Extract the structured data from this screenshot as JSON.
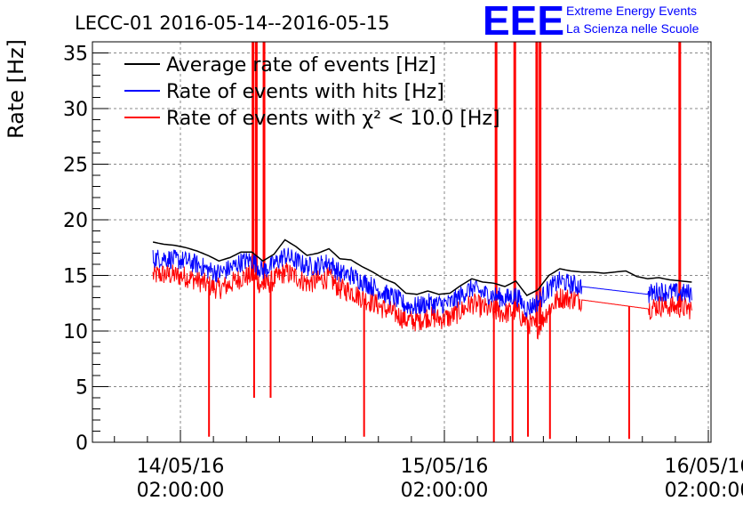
{
  "chart_data": {
    "type": "line",
    "title": "LECC-01 2016-05-14--2016-05-15",
    "ylabel": "Rate [Hz]",
    "xlabel": "",
    "ylim": [
      0,
      36
    ],
    "y_ticks": [
      0,
      5,
      10,
      15,
      20,
      25,
      30,
      35
    ],
    "x_ticks": [
      {
        "date": "14/05/16",
        "time": "02:00:00"
      },
      {
        "date": "15/05/16",
        "time": "02:00:00"
      },
      {
        "date": "16/05/16",
        "time": "02:00:00"
      }
    ],
    "grid": true,
    "legend_position": "top-left",
    "series": [
      {
        "name": "Average rate of events [Hz]",
        "color": "#000000",
        "hours": [
          -2.5,
          -1.5,
          -0.5,
          0.5,
          1.5,
          2.5,
          3.5,
          4.5,
          5.5,
          6.5,
          7.5,
          8.5,
          9.5,
          10.5,
          11.5,
          12.5,
          13.5,
          14.5,
          15.5,
          16.5,
          17.5,
          18.5,
          19.5,
          20.5,
          21.5,
          22.5,
          23.5,
          24.5,
          25.5,
          26.5,
          27.5,
          28.5,
          29.5,
          30.5,
          31.5,
          32.5,
          33.5,
          34.5,
          35.5,
          36.5,
          37.5,
          38.5,
          39.5,
          40.5,
          41.5,
          42.5,
          43.5,
          44.5,
          45.5,
          46.5
        ],
        "values": [
          18.0,
          17.8,
          17.7,
          17.5,
          17.2,
          16.8,
          16.3,
          16.6,
          17.1,
          17.1,
          16.3,
          16.9,
          18.2,
          17.6,
          16.8,
          17.0,
          17.4,
          16.5,
          16.4,
          15.8,
          15.3,
          14.7,
          14.3,
          13.4,
          13.3,
          13.6,
          13.3,
          13.4,
          14.1,
          14.7,
          14.4,
          14.3,
          14.0,
          14.5,
          13.2,
          13.7,
          15.0,
          15.6,
          15.4,
          15.3,
          15.3,
          15.2,
          15.3,
          15.4,
          14.9,
          14.7,
          14.8,
          14.6,
          14.5,
          14.4
        ],
        "gap_hours": [
          36.5,
          42.5
        ]
      },
      {
        "name": "Rate of events with hits [Hz]",
        "color": "#0000ff",
        "hours": [
          -2.5,
          -1.5,
          -0.5,
          0.5,
          1.5,
          2.5,
          3.5,
          4.5,
          5.5,
          6.5,
          7.5,
          8.5,
          9.5,
          10.5,
          11.5,
          12.5,
          13.5,
          14.5,
          15.5,
          16.5,
          17.5,
          18.5,
          19.5,
          20.5,
          21.5,
          22.5,
          23.5,
          24.5,
          25.5,
          26.5,
          27.5,
          28.5,
          29.5,
          30.5,
          31.5,
          32.5,
          33.5,
          34.5,
          35.5,
          36.5,
          42.5,
          43.5,
          44.5,
          45.5,
          46.5
        ],
        "values": [
          16.5,
          16.6,
          16.4,
          16.3,
          16.0,
          15.5,
          15.2,
          15.6,
          16.2,
          16.4,
          15.4,
          16.0,
          16.8,
          16.3,
          15.8,
          15.9,
          16.2,
          15.2,
          15.0,
          14.5,
          14.0,
          13.4,
          13.0,
          12.3,
          12.2,
          12.5,
          12.4,
          12.5,
          13.2,
          13.9,
          13.4,
          13.2,
          12.9,
          13.2,
          12.0,
          12.6,
          13.8,
          14.5,
          14.2,
          14.0,
          13.3,
          13.6,
          13.5,
          13.4,
          13.4
        ]
      },
      {
        "name": "Rate of events with χ² < 10.0 [Hz]",
        "color": "#ff0000",
        "hours": [
          -2.5,
          -1.5,
          -0.5,
          0.5,
          1.5,
          2.5,
          3.5,
          4.5,
          5.5,
          6.5,
          7.5,
          8.5,
          9.5,
          10.5,
          11.5,
          12.5,
          13.5,
          14.5,
          15.5,
          16.5,
          17.5,
          18.5,
          19.5,
          20.5,
          21.5,
          22.5,
          23.5,
          24.5,
          25.5,
          26.5,
          27.5,
          28.5,
          29.5,
          30.5,
          31.5,
          32.5,
          33.5,
          34.5,
          35.5,
          36.5,
          42.5,
          43.5,
          44.5,
          45.5,
          46.5
        ],
        "values": [
          15.0,
          15.1,
          15.0,
          14.9,
          14.6,
          14.1,
          13.8,
          14.2,
          14.8,
          15.0,
          14.0,
          14.6,
          15.3,
          14.9,
          14.3,
          14.5,
          14.8,
          13.8,
          13.6,
          13.0,
          12.6,
          12.0,
          11.6,
          11.0,
          10.9,
          11.3,
          11.1,
          11.2,
          11.8,
          12.5,
          12.1,
          11.8,
          11.6,
          11.8,
          10.8,
          10.3,
          12.0,
          13.0,
          12.9,
          12.8,
          12.0,
          12.3,
          12.2,
          12.1,
          12.0
        ],
        "spikes_up_hours": [
          6.6,
          7.6,
          28.7,
          30.4,
          32.4,
          45.4,
          6.9,
          32.7
        ],
        "spikes_down": [
          {
            "hour": 2.6,
            "value": 0.5
          },
          {
            "hour": 6.7,
            "value": 4.0
          },
          {
            "hour": 8.2,
            "value": 4.0
          },
          {
            "hour": 16.7,
            "value": 0.5
          },
          {
            "hour": 28.5,
            "value": 0.0
          },
          {
            "hour": 30.2,
            "value": 0.0
          },
          {
            "hour": 31.6,
            "value": 0.5
          },
          {
            "hour": 33.6,
            "value": 0.3
          },
          {
            "hour": 40.8,
            "value": 0.3
          }
        ]
      }
    ]
  },
  "logo": {
    "mark": "EEE",
    "line1": "Extreme Energy Events",
    "line2": "La Scienza nelle Scuole",
    "color": "#0000ff"
  }
}
